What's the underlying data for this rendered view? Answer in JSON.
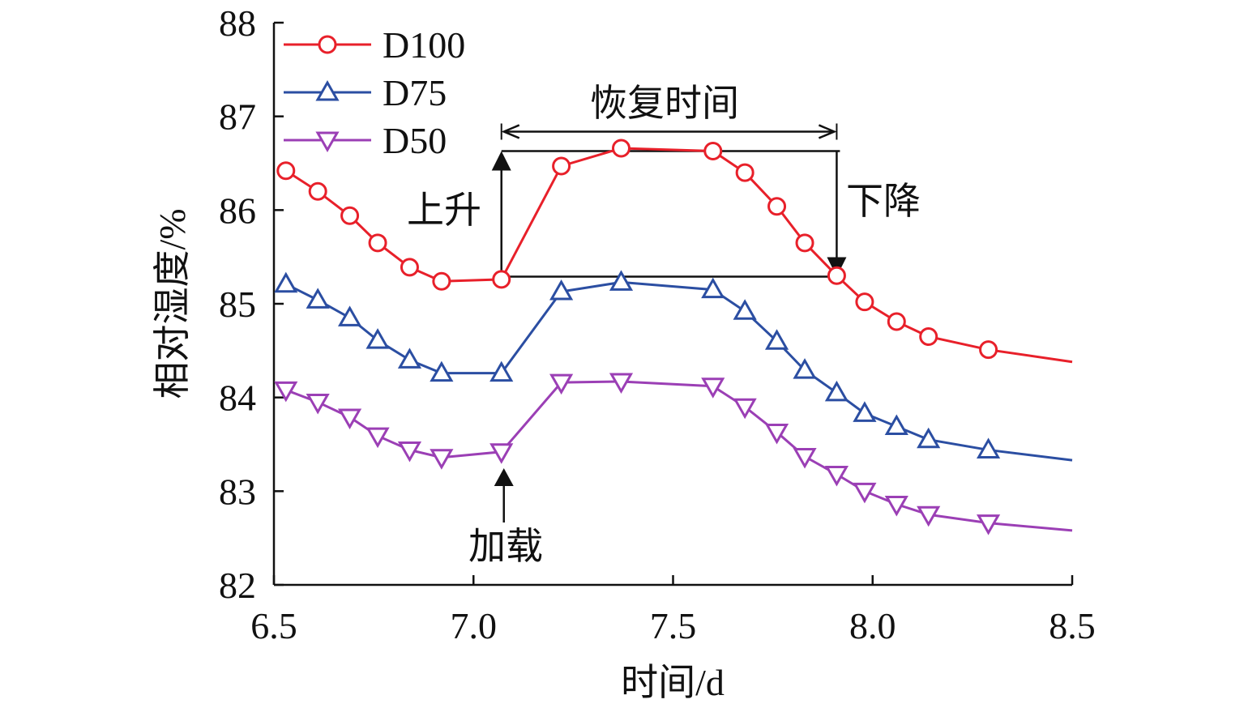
{
  "chart_data": {
    "type": "line",
    "title": "",
    "xlabel": "时间/d",
    "ylabel": "相对湿度/%",
    "xlim": [
      6.5,
      8.5
    ],
    "ylim": [
      82,
      88
    ],
    "xticks": [
      "6.5",
      "7.0",
      "7.5",
      "8.0",
      "8.5"
    ],
    "yticks": [
      "82",
      "83",
      "84",
      "85",
      "86",
      "87",
      "88"
    ],
    "grid": false,
    "legend_position": "top-left",
    "x": [
      6.53,
      6.61,
      6.69,
      6.76,
      6.84,
      6.92,
      7.07,
      7.22,
      7.37,
      7.6,
      7.68,
      7.76,
      7.83,
      7.91,
      7.98,
      8.06,
      8.14,
      8.29,
      8.5
    ],
    "series": [
      {
        "name": "D100",
        "marker": "circle",
        "color": "#e8202a",
        "values": [
          86.42,
          86.2,
          85.94,
          85.65,
          85.39,
          85.24,
          85.26,
          86.47,
          86.66,
          86.63,
          86.4,
          86.04,
          85.65,
          85.3,
          85.02,
          84.81,
          84.65,
          84.51,
          84.38
        ]
      },
      {
        "name": "D75",
        "marker": "triangle-up",
        "color": "#2b4ea2",
        "values": [
          85.21,
          85.04,
          84.85,
          84.61,
          84.4,
          84.26,
          84.26,
          85.13,
          85.23,
          85.15,
          84.92,
          84.6,
          84.29,
          84.05,
          83.83,
          83.69,
          83.55,
          83.44,
          83.33
        ]
      },
      {
        "name": "D50",
        "marker": "triangle-down",
        "color": "#9b3fb5",
        "values": [
          84.08,
          83.95,
          83.79,
          83.59,
          83.44,
          83.36,
          83.42,
          84.16,
          84.17,
          84.12,
          83.9,
          83.63,
          83.37,
          83.18,
          83.0,
          82.86,
          82.75,
          82.66,
          82.58
        ]
      }
    ],
    "annotations": {
      "recovery_time": "恢复时间",
      "rise": "上升",
      "fall": "下降",
      "loading": "加载",
      "box": {
        "x_start": 7.07,
        "x_end": 7.91,
        "y_low": 85.29,
        "y_high": 86.63
      }
    }
  }
}
